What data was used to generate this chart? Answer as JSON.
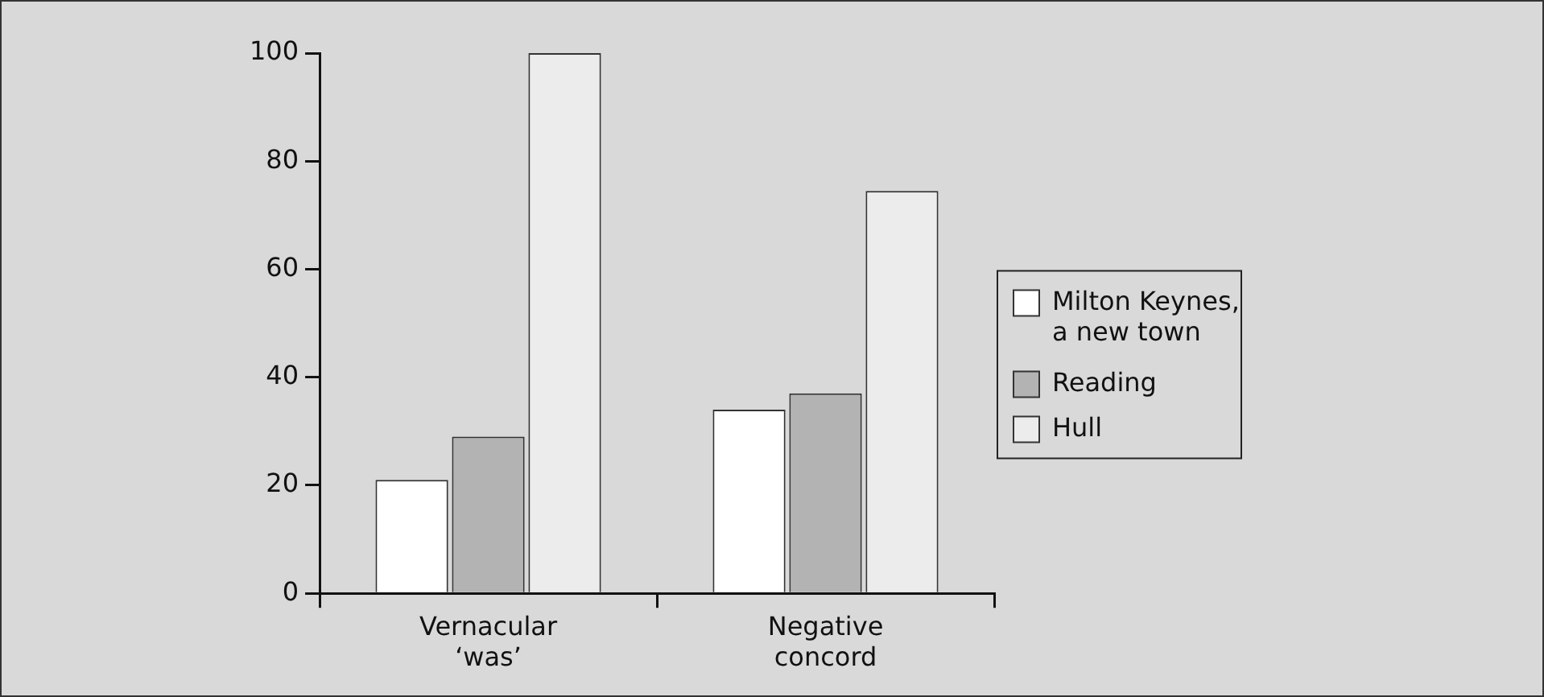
{
  "chart_data": {
    "type": "bar",
    "categories": [
      "Vernacular ‘was’",
      "Negative concord"
    ],
    "series": [
      {
        "name": "Milton Keynes, a new town",
        "color": "#ffffff",
        "values": [
          21,
          34
        ]
      },
      {
        "name": "Reading",
        "color": "#b3b3b3",
        "values": [
          29,
          37
        ]
      },
      {
        "name": "Hull",
        "color": "#ececec",
        "values": [
          100,
          74.5
        ]
      }
    ],
    "ylim": [
      0,
      100
    ],
    "yticks": [
      0,
      20,
      40,
      60,
      80,
      100
    ],
    "grid": false,
    "legend": "right"
  }
}
